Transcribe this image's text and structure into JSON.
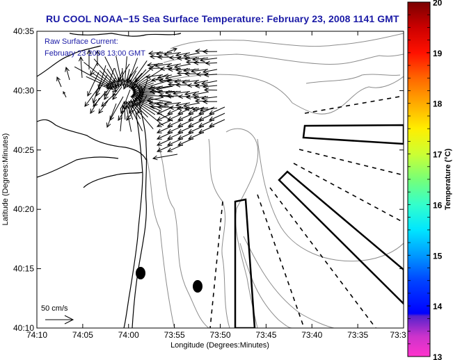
{
  "title": "RU COOL  NOAA−15  Sea Surface Temperature:  February 23, 2008 1141 GMT",
  "annotation": {
    "line1": "Raw Surface Current:",
    "line2": "February 23 2008 13:00 GMT"
  },
  "scale_arrow": {
    "label": "50 cm/s",
    "speed_cm_s": 50
  },
  "colors": {
    "title": "#1a1aa6",
    "coastline": "#000000",
    "isobath": "#8c8c8c",
    "arrows": "#000000",
    "zones": "#000000"
  },
  "chart_data": {
    "type": "map",
    "title": "RU COOL  NOAA-15  Sea Surface Temperature:  February 23, 2008 1141 GMT",
    "xlabel": "Longitude (Degrees:Minutes)",
    "ylabel": "Latitude (Degrees:Minutes)",
    "x_ticks": [
      "74:10",
      "74:05",
      "74:00",
      "73:55",
      "73:50",
      "73:45",
      "73:40",
      "73:35",
      "73:3"
    ],
    "y_ticks": [
      "40:10",
      "40:15",
      "40:20",
      "40:25",
      "40:30",
      "40:35"
    ],
    "xlim_minutes_west": [
      74.1667,
      73.5
    ],
    "ylim_minutes_north": [
      40.1667,
      40.5833
    ],
    "colorbar": {
      "label": "Temperature (°C)",
      "min": 13,
      "max": 20,
      "ticks": [
        "13",
        "14",
        "15",
        "16",
        "17",
        "18",
        "19",
        "20"
      ],
      "stops": [
        {
          "value": 13.0,
          "color": "#ff33cc"
        },
        {
          "value": 13.4,
          "color": "#cc33cc"
        },
        {
          "value": 13.8,
          "color": "#5522cc"
        },
        {
          "value": 13.85,
          "color": "#0000ff"
        },
        {
          "value": 14.5,
          "color": "#0044ff"
        },
        {
          "value": 15.0,
          "color": "#0099ff"
        },
        {
          "value": 15.5,
          "color": "#00e6ff"
        },
        {
          "value": 16.0,
          "color": "#33ffcc"
        },
        {
          "value": 16.5,
          "color": "#77ff77"
        },
        {
          "value": 17.0,
          "color": "#ccff33"
        },
        {
          "value": 17.5,
          "color": "#ffee00"
        },
        {
          "value": 18.0,
          "color": "#ffaa00"
        },
        {
          "value": 18.5,
          "color": "#ff6600"
        },
        {
          "value": 19.0,
          "color": "#ff1100"
        },
        {
          "value": 19.5,
          "color": "#cc0000"
        },
        {
          "value": 20.0,
          "color": "#7a0000"
        }
      ]
    },
    "markers": [
      {
        "name": "dot-1",
        "lon": "74:00.8",
        "lat": "40:14.6"
      },
      {
        "name": "dot-2",
        "lon": "73:57.7",
        "lat": "40:13.5"
      }
    ],
    "current_vectors_note": "Dense field of surface current arrows, predominantly pointing west-southwest, concentrated between 74:07-73:50 W and 40:25-40:33 N"
  }
}
